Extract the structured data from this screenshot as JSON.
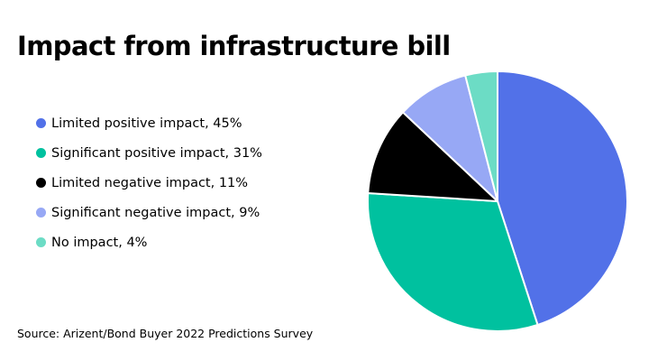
{
  "chart_data": {
    "type": "pie",
    "title": "Impact from infrastructure bill",
    "slices": [
      {
        "label": "Limited positive impact",
        "value": 45,
        "legend_text": "Limited positive impact, 45%",
        "color": "#5271e8"
      },
      {
        "label": "Significant positive impact",
        "value": 31,
        "legend_text": "Significant positive impact, 31%",
        "color": "#00c19f"
      },
      {
        "label": "Limited negative impact",
        "value": 11,
        "legend_text": "Limited negative impact, 11%",
        "color": "#000000"
      },
      {
        "label": "Significant negative impact",
        "value": 9,
        "legend_text": "Significant negative impact, 9%",
        "color": "#97a8f5"
      },
      {
        "label": "No impact",
        "value": 4,
        "legend_text": "No impact, 4%",
        "color": "#6cdcc5"
      }
    ],
    "start_angle": "top",
    "direction": "clockwise",
    "legend_position": "left",
    "source": "Source: Arizent/Bond Buyer 2022 Predictions Survey"
  }
}
